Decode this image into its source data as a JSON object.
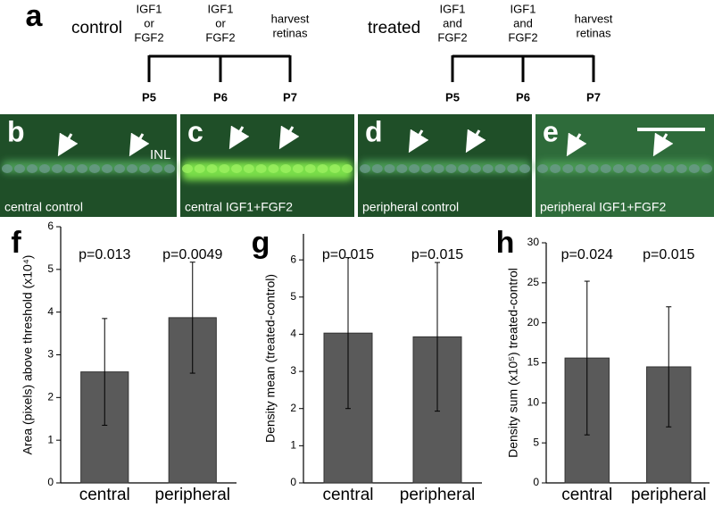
{
  "figure_a": {
    "panel_label": "a",
    "groups": [
      {
        "title": "control",
        "steps": [
          [
            "IGF1",
            "or",
            "FGF2"
          ],
          [
            "IGF1",
            "or",
            "FGF2"
          ],
          [
            "harvest",
            "retinas"
          ]
        ],
        "days": [
          "P5",
          "P6",
          "P7"
        ]
      },
      {
        "title": "treated",
        "steps": [
          [
            "IGF1",
            "and",
            "FGF2"
          ],
          [
            "IGF1",
            "and",
            "FGF2"
          ],
          [
            "harvest",
            "retinas"
          ]
        ],
        "days": [
          "P5",
          "P6",
          "P7"
        ]
      }
    ]
  },
  "micrographs": [
    {
      "panel_label": "b",
      "caption": "central control",
      "layer_label": "INL"
    },
    {
      "panel_label": "c",
      "caption": "central IGF1+FGF2"
    },
    {
      "panel_label": "d",
      "caption": "peripheral control"
    },
    {
      "panel_label": "e",
      "caption": "peripheral IGF1+FGF2"
    }
  ],
  "chart_data": [
    {
      "type": "bar",
      "panel_label": "f",
      "y_label": "Area (pixels) above threshold (x10⁴)",
      "categories": [
        "central",
        "peripheral"
      ],
      "values": [
        2.6,
        3.87
      ],
      "errors": [
        1.25,
        1.3
      ],
      "annotations": [
        "p=0.013",
        "p=0.0049"
      ],
      "color": "#5a5a5a",
      "ylim": [
        0,
        6
      ],
      "yticks": [
        0,
        1,
        2,
        3,
        4,
        5,
        6
      ]
    },
    {
      "type": "bar",
      "panel_label": "g",
      "y_label": "Density mean (treated-control)",
      "categories": [
        "central",
        "peripheral"
      ],
      "values": [
        4.03,
        3.93
      ],
      "errors": [
        2.03,
        2.0
      ],
      "annotations": [
        "p=0.015",
        "p=0.015"
      ],
      "color": "#5a5a5a",
      "ylim": [
        0,
        6.7
      ],
      "yticks": [
        0,
        1,
        2,
        3,
        4,
        5,
        6
      ]
    },
    {
      "type": "bar",
      "panel_label": "h",
      "y_label": "Density sum (x10⁵) treated-control",
      "categories": [
        "central",
        "peripheral"
      ],
      "values": [
        15.6,
        14.5
      ],
      "errors": [
        9.6,
        7.5
      ],
      "annotations": [
        "p=0.024",
        "p=0.015"
      ],
      "color": "#5a5a5a",
      "ylim": [
        0,
        30
      ],
      "yticks": [
        0,
        5,
        10,
        15,
        20,
        25,
        30
      ]
    }
  ]
}
